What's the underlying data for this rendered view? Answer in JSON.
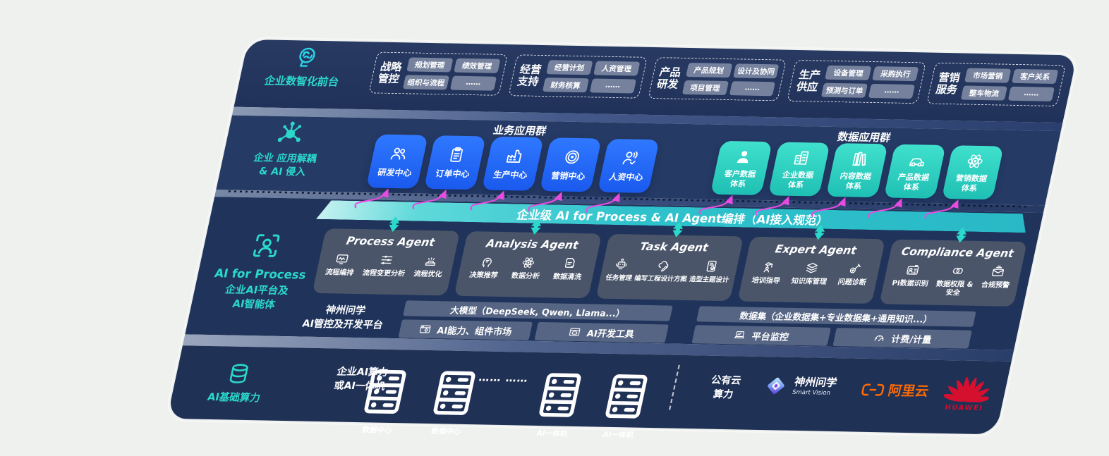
{
  "colors": {
    "accent_teal": "#2BD9CB",
    "accent_blue": "#1E66F0",
    "arrow_pink": "#E84BE0",
    "navy_band": "#243A64",
    "alibaba_orange": "#FF6A00",
    "huawei_red": "#CE0E2D"
  },
  "front_office": {
    "icon": "brain-icon",
    "label": "企业数智化前台",
    "groups": [
      {
        "lines": [
          "战略",
          "管控"
        ],
        "items": [
          "规划管理",
          "绩效管理",
          "组织与流程",
          "……"
        ]
      },
      {
        "lines": [
          "经营",
          "支持"
        ],
        "items": [
          "经营计划",
          "人资管理",
          "财务核算",
          "……"
        ]
      },
      {
        "lines": [
          "产品",
          "研发"
        ],
        "items": [
          "产品规划",
          "设计及协同",
          "项目管理",
          "……"
        ]
      },
      {
        "lines": [
          "生产",
          "供应"
        ],
        "items": [
          "设备管理",
          "采购执行",
          "预测与订单",
          "……"
        ]
      },
      {
        "lines": [
          "营销",
          "服务"
        ],
        "items": [
          "市场营销",
          "客户关系",
          "整车物流",
          "……"
        ]
      }
    ]
  },
  "app_layer": {
    "icon": "molecule-icon",
    "label_lines": [
      "企业 应用解耦",
      "& AI 侵入"
    ],
    "business_group": {
      "title": "业务应用群",
      "tiles": [
        {
          "label": "研发中心",
          "icon": "team-icon"
        },
        {
          "label": "订单中心",
          "icon": "clipboard-icon"
        },
        {
          "label": "生产中心",
          "icon": "factory-icon"
        },
        {
          "label": "营销中心",
          "icon": "target-icon"
        },
        {
          "label": "人资中心",
          "icon": "hr-icon"
        }
      ]
    },
    "data_group": {
      "title": "数据应用群",
      "tiles": [
        {
          "lines": [
            "客户数据",
            "体系"
          ],
          "icon": "person-icon"
        },
        {
          "lines": [
            "企业数据",
            "体系"
          ],
          "icon": "building-icon"
        },
        {
          "lines": [
            "内容数据",
            "体系"
          ],
          "icon": "books-icon"
        },
        {
          "lines": [
            "产品数据",
            "体系"
          ],
          "icon": "car-icon"
        },
        {
          "lines": [
            "营销数据",
            "体系"
          ],
          "icon": "atom-icon"
        }
      ]
    }
  },
  "orchestration_bar": {
    "label": "企业级 AI for Process & AI Agent编排（AI接入规范）"
  },
  "ai_platform": {
    "icon": "person-frame-icon",
    "title": "AI for Process",
    "subtitle_lines": [
      "企业AI平台及",
      "AI智能体"
    ],
    "agents": [
      {
        "title": "Process Agent",
        "items": [
          {
            "label": "流程编排",
            "icon": "monitor-wave-icon"
          },
          {
            "label": "流程变更分析",
            "icon": "sliders-icon"
          },
          {
            "label": "流程优化",
            "icon": "machine-icon"
          }
        ]
      },
      {
        "title": "Analysis Agent",
        "items": [
          {
            "label": "决策推荐",
            "icon": "head-profile-icon"
          },
          {
            "label": "数据分析",
            "icon": "atom-icon"
          },
          {
            "label": "数据清洗",
            "icon": "doc-check-icon"
          }
        ]
      },
      {
        "title": "Task Agent",
        "items": [
          {
            "label": "任务管理",
            "icon": "robot-icon"
          },
          {
            "label": "编写工程设计方案",
            "icon": "cloud-pen-icon"
          },
          {
            "label": "造型主题设计",
            "icon": "design-card-icon"
          }
        ]
      },
      {
        "title": "Expert Agent",
        "items": [
          {
            "label": "培训指导",
            "icon": "training-icon"
          },
          {
            "label": "知识库管理",
            "icon": "layers-icon"
          },
          {
            "label": "问题诊断",
            "icon": "diagnose-icon"
          }
        ]
      },
      {
        "title": "Compliance Agent",
        "items": [
          {
            "label": "PI数据识别",
            "icon": "id-card-icon"
          },
          {
            "label": "数据权限 &\n安全",
            "icon": "rings-icon"
          },
          {
            "label": "合规预警",
            "icon": "mail-alert-icon"
          }
        ]
      }
    ],
    "platform": {
      "label_lines": [
        "神州问学",
        "AI管控及开发平台"
      ],
      "model_bar": "大模型（DeepSeek, Qwen, Llama...）",
      "model_cells": [
        {
          "label": "AI能力、组件市场",
          "icon": "window-gear-icon"
        },
        {
          "label": "AI开发工具",
          "icon": "window-cloud-icon"
        }
      ],
      "dataset_bar": "数据集（企业数据集+专业数据集+通用知识...）",
      "dataset_cells": [
        {
          "label": "平台监控",
          "icon": "laptop-chart-icon"
        },
        {
          "label": "计费/计量",
          "icon": "gauge-icon"
        }
      ]
    }
  },
  "infra": {
    "icon": "database-icon",
    "label": "AI基础算力",
    "compute_lines": [
      "企业AI算力",
      "或AI一体机"
    ],
    "nodes": [
      {
        "label": "数据中心",
        "icon": "server-icon"
      },
      {
        "label": "数据中心",
        "icon": "server-icon"
      },
      {
        "label": "AI一体机",
        "icon": "server-icon"
      },
      {
        "label": "AI一体机",
        "icon": "server-icon"
      }
    ],
    "ellipsis": "…… ……",
    "public_cloud_lines": [
      "公有云",
      "算力"
    ],
    "vendors": {
      "szwx": {
        "name": "神州问学",
        "sub": "Smart Vision",
        "icon": "szwx-diamond-logo"
      },
      "aliyun": {
        "name": "阿里云",
        "icon": "aliyun-brackets-icon"
      },
      "huawei": {
        "name": "HUAWEI",
        "icon": "huawei-flower-logo"
      }
    }
  }
}
